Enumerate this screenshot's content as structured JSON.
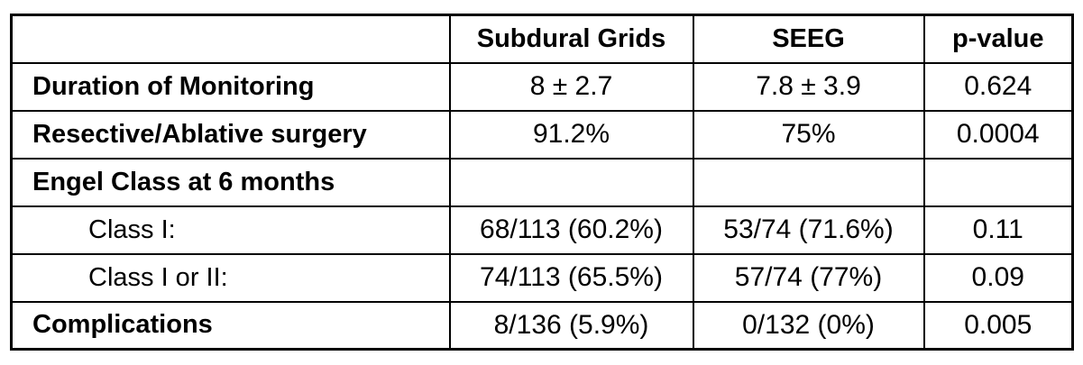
{
  "table": {
    "name": "monitoring-comparison-table",
    "columns": {
      "label": "",
      "group1": "Subdural Grids",
      "group2": "SEEG",
      "stat": "p-value"
    },
    "rows": [
      {
        "label": "Duration of Monitoring",
        "bold": true,
        "indent": false,
        "values": [
          "8 ± 2.7",
          "7.8 ± 3.9",
          "0.624"
        ]
      },
      {
        "label": "Resective/Ablative surgery",
        "bold": true,
        "indent": false,
        "values": [
          "91.2%",
          "75%",
          "0.0004"
        ]
      },
      {
        "label": "Engel Class at 6 months",
        "bold": true,
        "indent": false,
        "values": [
          "",
          "",
          ""
        ]
      },
      {
        "label": "Class I:",
        "bold": false,
        "indent": true,
        "values": [
          "68/113 (60.2%)",
          "53/74 (71.6%)",
          "0.11"
        ]
      },
      {
        "label": "Class I or II:",
        "bold": false,
        "indent": true,
        "values": [
          "74/113 (65.5%)",
          "57/74 (77%)",
          "0.09"
        ]
      },
      {
        "label": "Complications",
        "bold": true,
        "indent": false,
        "values": [
          "8/136 (5.9%)",
          "0/132 (0%)",
          "0.005"
        ]
      }
    ]
  },
  "colors": {
    "border": "#000000",
    "text": "#000000",
    "background": "#ffffff"
  }
}
